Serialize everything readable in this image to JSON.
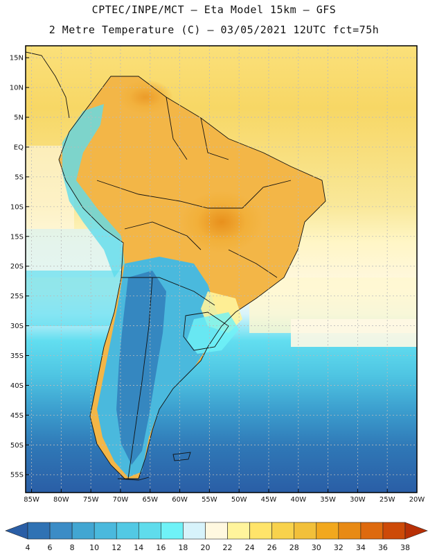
{
  "header": {
    "line1": "CPTEC/INPE/MCT –  Eta Model 15km – GFS",
    "line2": "2 Metre Temperature (C) – 03/05/2021 12UTC fct=75h"
  },
  "map": {
    "lat_labels": [
      "15N",
      "10N",
      "5N",
      "EQ",
      "5S",
      "10S",
      "15S",
      "20S",
      "25S",
      "30S",
      "35S",
      "40S",
      "45S",
      "50S",
      "55S"
    ],
    "lat_values": [
      15,
      10,
      5,
      0,
      -5,
      -10,
      -15,
      -20,
      -25,
      -30,
      -35,
      -40,
      -45,
      -50,
      -55
    ],
    "lon_labels": [
      "85W",
      "80W",
      "75W",
      "70W",
      "65W",
      "60W",
      "55W",
      "50W",
      "45W",
      "40W",
      "35W",
      "30W",
      "25W",
      "20W"
    ],
    "lon_values": [
      -85,
      -80,
      -75,
      -70,
      -65,
      -60,
      -55,
      -50,
      -45,
      -40,
      -35,
      -30,
      -25,
      -20
    ],
    "extent": {
      "lon_min": -86,
      "lon_max": -20,
      "lat_min": -58,
      "lat_max": 17
    }
  },
  "colorbar": {
    "labels": [
      "4",
      "6",
      "8",
      "10",
      "12",
      "14",
      "16",
      "18",
      "20",
      "22",
      "24",
      "26",
      "28",
      "30",
      "32",
      "34",
      "36",
      "38"
    ],
    "colors": [
      "#2a5ea6",
      "#2f72b4",
      "#3b8cc6",
      "#42a6d2",
      "#4ab9dd",
      "#52c9e4",
      "#5fdcec",
      "#6ff2f7",
      "#d7f3fb",
      "#fff8e0",
      "#fff49c",
      "#ffe46a",
      "#f8d24c",
      "#f2c03a",
      "#f2a81e",
      "#e88a14",
      "#de6a0e",
      "#cd4a08",
      "#b83006"
    ]
  }
}
